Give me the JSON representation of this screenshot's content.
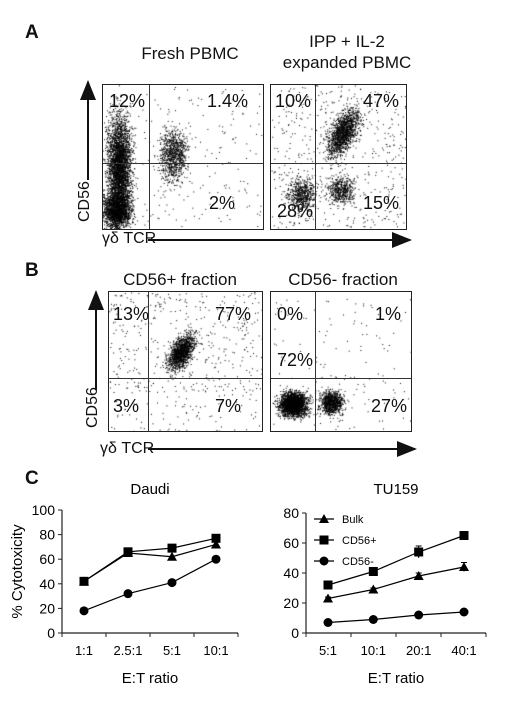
{
  "panel_a": {
    "letter": "A",
    "left_title": "Fresh PBMC",
    "right_title_line1": "IPP + IL-2",
    "right_title_line2": "expanded PBMC",
    "y_label": "CD56",
    "x_label": "γδ TCR",
    "left_quadrants": {
      "ul": "12%",
      "ur": "1.4%",
      "ll": "",
      "lr": "2%"
    },
    "right_quadrants": {
      "ul": "10%",
      "ur": "47%",
      "ll": "28%",
      "lr": "15%"
    }
  },
  "panel_b": {
    "letter": "B",
    "left_title": "CD56+ fraction",
    "right_title": "CD56- fraction",
    "y_label": "CD56",
    "x_label": "γδ TCR",
    "left_quadrants": {
      "ul": "13%",
      "ur": "77%",
      "ll": "3%",
      "lr": "7%"
    },
    "right_quadrants": {
      "ul": "0%",
      "ur": "1%",
      "ll": "72%",
      "lr": "27%"
    }
  },
  "panel_c": {
    "letter": "C"
  },
  "chart_data": [
    {
      "type": "line",
      "title": "Daudi",
      "xlabel": "E:T ratio",
      "ylabel": "% Cytotoxicity",
      "categories": [
        "1:1",
        "2.5:1",
        "5:1",
        "10:1"
      ],
      "ylim": [
        0,
        100
      ],
      "yticks": [
        0,
        20,
        40,
        60,
        80,
        100
      ],
      "series": [
        {
          "marker": "triangle",
          "values": [
            42,
            65,
            62,
            72
          ]
        },
        {
          "marker": "square",
          "values": [
            42,
            66,
            69,
            77
          ]
        },
        {
          "marker": "circle",
          "values": [
            18,
            32,
            41,
            60
          ]
        }
      ]
    },
    {
      "type": "line",
      "title": "TU159",
      "xlabel": "E:T ratio",
      "ylabel": "",
      "categories": [
        "5:1",
        "10:1",
        "20:1",
        "40:1"
      ],
      "ylim": [
        0,
        80
      ],
      "yticks": [
        0,
        20,
        40,
        60,
        80
      ],
      "legend": "top-left",
      "series": [
        {
          "name": "Bulk",
          "marker": "triangle",
          "values": [
            23,
            29,
            38,
            44
          ],
          "err": [
            1,
            1,
            2,
            3
          ]
        },
        {
          "name": "CD56+",
          "marker": "square",
          "values": [
            32,
            41,
            54,
            65
          ],
          "err": [
            1,
            1,
            4,
            1
          ]
        },
        {
          "name": "CD56-",
          "marker": "circle",
          "values": [
            7,
            9,
            12,
            14
          ],
          "err": [
            0.5,
            0.5,
            1,
            1
          ]
        }
      ]
    }
  ]
}
